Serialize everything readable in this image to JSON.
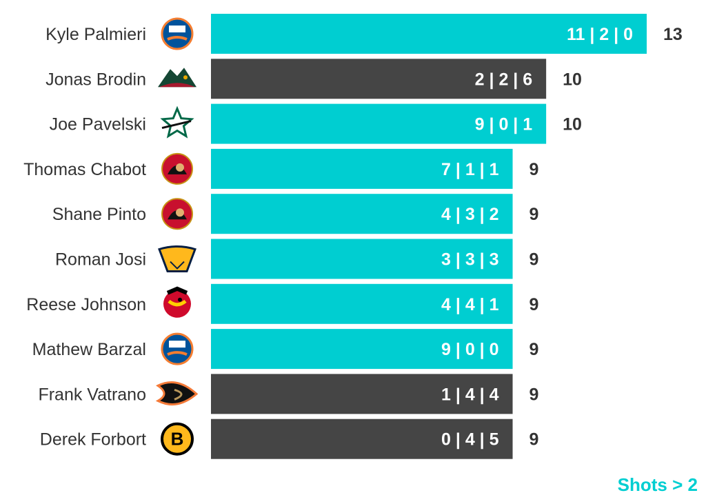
{
  "colors": {
    "highlight": "#00CED1",
    "default": "#454545",
    "text": "#333333",
    "label": "#ffffff"
  },
  "chart_data": {
    "type": "bar",
    "orientation": "horizontal",
    "xlim": [
      0,
      13
    ],
    "grid": false,
    "rows": [
      {
        "player": "Kyle Palmieri",
        "team_icon": "islanders-logo-icon",
        "breakdown": "11 | 2 | 0",
        "total": 13,
        "highlight": true
      },
      {
        "player": "Jonas Brodin",
        "team_icon": "wild-logo-icon",
        "breakdown": "2 | 2 | 6",
        "total": 10,
        "highlight": false
      },
      {
        "player": "Joe Pavelski",
        "team_icon": "stars-logo-icon",
        "breakdown": "9 | 0 | 1",
        "total": 10,
        "highlight": true
      },
      {
        "player": "Thomas Chabot",
        "team_icon": "senators-logo-icon",
        "breakdown": "7 | 1 | 1",
        "total": 9,
        "highlight": true
      },
      {
        "player": "Shane Pinto",
        "team_icon": "senators-logo-icon",
        "breakdown": "4 | 3 | 2",
        "total": 9,
        "highlight": true
      },
      {
        "player": "Roman Josi",
        "team_icon": "predators-logo-icon",
        "breakdown": "3 | 3 | 3",
        "total": 9,
        "highlight": true
      },
      {
        "player": "Reese Johnson",
        "team_icon": "blackhawks-logo-icon",
        "breakdown": "4 | 4 | 1",
        "total": 9,
        "highlight": true
      },
      {
        "player": "Mathew Barzal",
        "team_icon": "islanders-logo-icon",
        "breakdown": "9 | 0 | 0",
        "total": 9,
        "highlight": true
      },
      {
        "player": "Frank Vatrano",
        "team_icon": "ducks-logo-icon",
        "breakdown": "1 | 4 | 4",
        "total": 9,
        "highlight": false
      },
      {
        "player": "Derek Forbort",
        "team_icon": "bruins-logo-icon",
        "breakdown": "0 | 4 | 5",
        "total": 9,
        "highlight": false
      }
    ],
    "annotation": "Shots > 2"
  }
}
